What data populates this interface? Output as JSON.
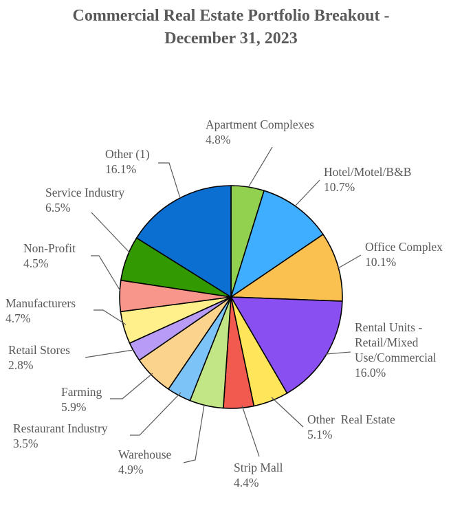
{
  "chart_data": {
    "type": "pie",
    "title_lines": [
      "Commercial Real Estate Portfolio Breakout -",
      "December 31, 2023"
    ],
    "slices": [
      {
        "label_lines": [
          "Apartment Complexes"
        ],
        "value": 4.8,
        "value_label": "4.8%",
        "color": "#92D050"
      },
      {
        "label_lines": [
          "Hotel/Motel/B&B"
        ],
        "value": 10.7,
        "value_label": "10.7%",
        "color": "#3FAEFF"
      },
      {
        "label_lines": [
          "Office Complex"
        ],
        "value": 10.1,
        "value_label": "10.1%",
        "color": "#FAC050"
      },
      {
        "label_lines": [
          "Rental Units -",
          "Retail/Mixed",
          "Use/Commercial"
        ],
        "value": 16.0,
        "value_label": "16.0%",
        "color": "#8A4FF0"
      },
      {
        "label_lines": [
          "Other  Real Estate"
        ],
        "value": 5.1,
        "value_label": "5.1%",
        "color": "#FFE55A"
      },
      {
        "label_lines": [
          "Strip Mall"
        ],
        "value": 4.4,
        "value_label": "4.4%",
        "color": "#F25A4F"
      },
      {
        "label_lines": [
          "Warehouse"
        ],
        "value": 4.9,
        "value_label": "4.9%",
        "color": "#C2E585"
      },
      {
        "label_lines": [
          "Restaurant Industry"
        ],
        "value": 3.5,
        "value_label": "3.5%",
        "color": "#7CC4F7"
      },
      {
        "label_lines": [
          "Farming"
        ],
        "value": 5.9,
        "value_label": "5.9%",
        "color": "#FCD38D"
      },
      {
        "label_lines": [
          "Retail Stores"
        ],
        "value": 2.8,
        "value_label": "2.8%",
        "color": "#B89BF4"
      },
      {
        "label_lines": [
          "Manufacturers"
        ],
        "value": 4.7,
        "value_label": "4.7%",
        "color": "#FFF08C"
      },
      {
        "label_lines": [
          "Non-Profit"
        ],
        "value": 4.5,
        "value_label": "4.5%",
        "color": "#F8968C"
      },
      {
        "label_lines": [
          "Service Industry"
        ],
        "value": 6.5,
        "value_label": "6.5%",
        "color": "#339900"
      },
      {
        "label_lines": [
          "Other (1)"
        ],
        "value": 16.1,
        "value_label": "16.1%",
        "color": "#0A6FD0"
      }
    ]
  }
}
